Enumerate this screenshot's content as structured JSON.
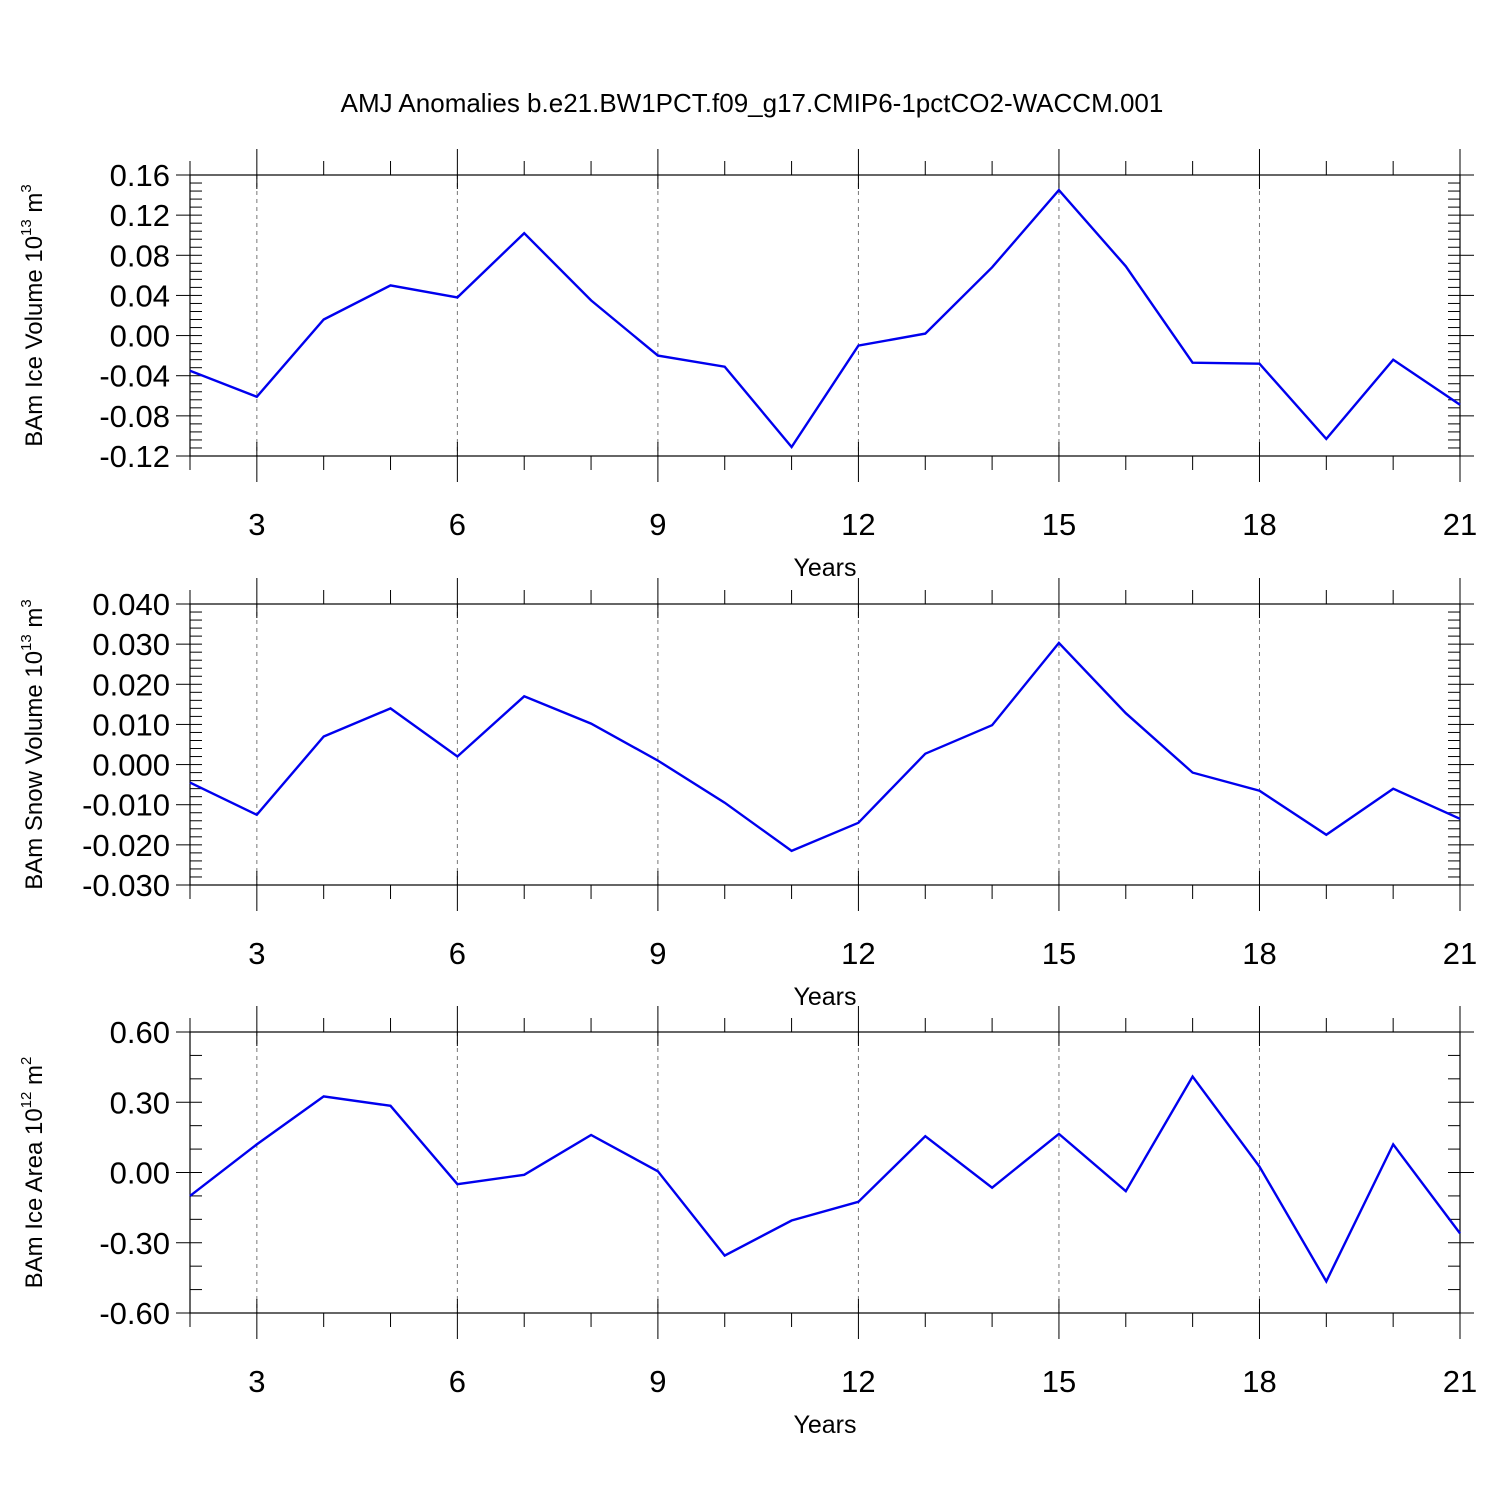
{
  "title": "AMJ Anomalies b.e21.BW1PCT.f09_g17.CMIP6-1pctCO2-WACCM.001",
  "chart_data": [
    {
      "type": "line",
      "ylabel": {
        "main": "BAm Ice Volume 10",
        "exp": "13",
        "unit": " m",
        "unit_exp": "3"
      },
      "xlabel": "Years",
      "xlim": [
        2,
        21
      ],
      "ylim": [
        -0.12,
        0.16
      ],
      "xticks": [
        3,
        6,
        9,
        12,
        15,
        18,
        21
      ],
      "yticks": [
        0.16,
        0.12,
        0.08,
        0.04,
        0.0,
        -0.04,
        -0.08,
        -0.12
      ],
      "ytick_labels": [
        "0.16",
        "0.12",
        "0.08",
        "0.04",
        "0.00",
        "-0.04",
        "-0.08",
        "-0.12"
      ],
      "yminor": 0.008,
      "color": "#0000ee",
      "x": [
        2,
        3,
        4,
        5,
        6,
        7,
        8,
        9,
        10,
        11,
        12,
        13,
        14,
        15,
        16,
        17,
        18,
        19,
        20,
        21
      ],
      "values": [
        -0.035,
        -0.061,
        0.016,
        0.05,
        0.038,
        0.102,
        0.035,
        -0.02,
        -0.031,
        -0.111,
        -0.01,
        0.002,
        0.068,
        0.145,
        0.069,
        -0.027,
        -0.028,
        -0.103,
        -0.024,
        -0.069
      ]
    },
    {
      "type": "line",
      "ylabel": {
        "main": "BAm Snow Volume 10",
        "exp": "13",
        "unit": " m",
        "unit_exp": "3"
      },
      "xlabel": "Years",
      "xlim": [
        2,
        21
      ],
      "ylim": [
        -0.03,
        0.04
      ],
      "xticks": [
        3,
        6,
        9,
        12,
        15,
        18,
        21
      ],
      "yticks": [
        0.04,
        0.03,
        0.02,
        0.01,
        0.0,
        -0.01,
        -0.02,
        -0.03
      ],
      "ytick_labels": [
        "0.040",
        "0.030",
        "0.020",
        "0.010",
        "0.000",
        "-0.010",
        "-0.020",
        "-0.030"
      ],
      "yminor": 0.002,
      "color": "#0000ee",
      "x": [
        2,
        3,
        4,
        5,
        6,
        7,
        8,
        9,
        10,
        11,
        12,
        13,
        14,
        15,
        16,
        17,
        18,
        19,
        20,
        21
      ],
      "values": [
        -0.0045,
        -0.0125,
        0.007,
        0.014,
        0.002,
        0.017,
        0.0102,
        0.001,
        -0.0095,
        -0.0215,
        -0.0145,
        0.0027,
        0.0098,
        0.0303,
        0.0128,
        -0.002,
        -0.0065,
        -0.0175,
        -0.006,
        -0.0135
      ]
    },
    {
      "type": "line",
      "ylabel": {
        "main": "BAm Ice Area 10",
        "exp": "12",
        "unit": " m",
        "unit_exp": "2"
      },
      "xlabel": "Years",
      "xlim": [
        2,
        21
      ],
      "ylim": [
        -0.6,
        0.6
      ],
      "xticks": [
        3,
        6,
        9,
        12,
        15,
        18,
        21
      ],
      "yticks": [
        0.6,
        0.3,
        0.0,
        -0.3,
        -0.6
      ],
      "ytick_labels": [
        "0.60",
        "0.30",
        "0.00",
        "-0.30",
        "-0.60"
      ],
      "yminor": 0.1,
      "color": "#0000ee",
      "x": [
        2,
        3,
        4,
        5,
        6,
        7,
        8,
        9,
        10,
        11,
        12,
        13,
        14,
        15,
        16,
        17,
        18,
        19,
        20,
        21
      ],
      "values": [
        -0.1,
        0.12,
        0.325,
        0.285,
        -0.05,
        -0.01,
        0.16,
        0.005,
        -0.355,
        -0.205,
        -0.125,
        0.155,
        -0.065,
        0.165,
        -0.08,
        0.41,
        0.025,
        -0.465,
        0.12,
        -0.26
      ]
    }
  ]
}
